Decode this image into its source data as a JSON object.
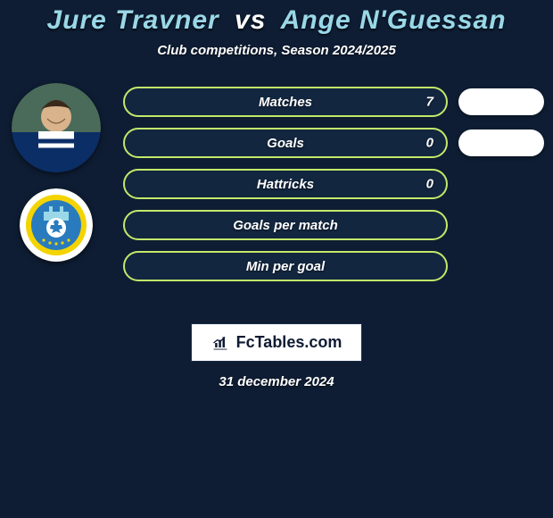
{
  "background_color": "#0e1d33",
  "title": {
    "player1": "Jure Travner",
    "vs": "vs",
    "player2": "Ange N'Guessan",
    "player1_color": "#9ad8e8",
    "vs_color": "#ffffff",
    "player2_color": "#9ad8e8",
    "fontsize": 30
  },
  "subtitle": "Club competitions, Season 2024/2025",
  "avatars": {
    "player_bg": "#0b1524",
    "logo_ring": "#ffffff",
    "logo_inner": "#2a7bbd",
    "logo_accent": "#f4d400"
  },
  "row_style": {
    "pill_bg": "#12263f",
    "pill_border": "#c3e96a",
    "label_color": "#ffffff",
    "value_color": "#ffffff",
    "bubble_bg": "#ffffff"
  },
  "rows": [
    {
      "label": "Matches",
      "value_left": "7",
      "bubble": "show",
      "bubble_value": ""
    },
    {
      "label": "Goals",
      "value_left": "0",
      "bubble": "show",
      "bubble_value": ""
    },
    {
      "label": "Hattricks",
      "value_left": "0",
      "bubble": "none",
      "bubble_value": ""
    },
    {
      "label": "Goals per match",
      "value_left": "",
      "bubble": "none",
      "bubble_value": ""
    },
    {
      "label": "Min per goal",
      "value_left": "",
      "bubble": "none",
      "bubble_value": ""
    }
  ],
  "brand": "FcTables.com",
  "date": "31 december 2024"
}
